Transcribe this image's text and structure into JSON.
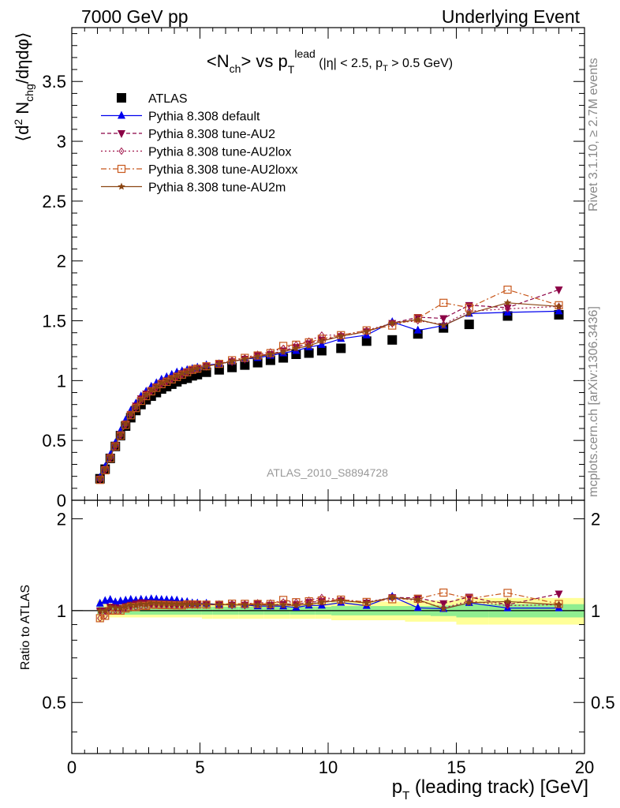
{
  "header": {
    "left": "7000 GeV pp",
    "right": "Underlying Event"
  },
  "side_labels": {
    "rivet": "Rivet 3.1.10, ≥ 2.7M events",
    "mcplots": "mcplots.cern.ch [arXiv:1306.3436]"
  },
  "colors": {
    "ATLAS": "#000000",
    "default": "#0000ee",
    "AU2": "#8b0045",
    "AU2lox": "#a0154b",
    "AU2loxx": "#c8581c",
    "AU2m": "#8b4513",
    "band_green": "#90ee90",
    "band_yellow": "#ffff99"
  },
  "chart_data": [
    {
      "type": "scatter",
      "title": "<N_ch> vs p_T^lead (|η| < 2.5, p_T > 0.5 GeV)",
      "title_parts": {
        "main": "<N",
        "main_sub": "ch",
        "mid": "> vs p",
        "sub": "T",
        "sup": "lead",
        "cuts_a": " (|η| < 2.5, p",
        "cuts_sub": "T",
        "cuts_b": " > 0.5 GeV)"
      },
      "ylabel": "⟨d² N_chg/dηdφ⟩",
      "ylabel_parts": {
        "a": "⟨d",
        "sup": "2",
        "b": " N",
        "sub": "chg",
        "c": "/dηdφ⟩"
      },
      "xlim": [
        0,
        20
      ],
      "ylim": [
        0,
        3.95
      ],
      "yticks": [
        "0",
        "0.5",
        "1",
        "1.5",
        "2",
        "2.5",
        "3",
        "3.5"
      ],
      "legend_position": "top-left",
      "watermark": "ATLAS_2010_S8894728",
      "x": [
        1.1,
        1.3,
        1.5,
        1.7,
        1.9,
        2.1,
        2.3,
        2.5,
        2.7,
        2.9,
        3.1,
        3.3,
        3.5,
        3.7,
        3.9,
        4.1,
        4.3,
        4.5,
        4.7,
        4.9,
        5.25,
        5.75,
        6.25,
        6.75,
        7.25,
        7.75,
        8.25,
        8.75,
        9.25,
        9.75,
        10.5,
        11.5,
        12.5,
        13.5,
        14.5,
        15.5,
        17.0,
        19.0
      ],
      "series": [
        {
          "name": "ATLAS",
          "marker": "square-filled",
          "values": [
            0.18,
            0.26,
            0.35,
            0.45,
            0.54,
            0.62,
            0.69,
            0.75,
            0.8,
            0.84,
            0.87,
            0.9,
            0.93,
            0.95,
            0.97,
            0.99,
            1.01,
            1.02,
            1.04,
            1.05,
            1.07,
            1.09,
            1.11,
            1.13,
            1.15,
            1.17,
            1.19,
            1.22,
            1.23,
            1.25,
            1.27,
            1.33,
            1.34,
            1.39,
            1.44,
            1.47,
            1.54,
            1.55
          ]
        },
        {
          "name": "Pythia 8.308 default",
          "marker": "triangle-up-filled",
          "line": "solid",
          "values": [
            0.19,
            0.28,
            0.38,
            0.48,
            0.58,
            0.67,
            0.75,
            0.81,
            0.87,
            0.91,
            0.95,
            0.98,
            1.01,
            1.03,
            1.05,
            1.07,
            1.08,
            1.09,
            1.1,
            1.11,
            1.13,
            1.14,
            1.16,
            1.18,
            1.19,
            1.21,
            1.23,
            1.25,
            1.28,
            1.3,
            1.35,
            1.38,
            1.49,
            1.42,
            1.46,
            1.56,
            1.57,
            1.58
          ]
        },
        {
          "name": "Pythia 8.308 tune-AU2",
          "marker": "triangle-down-filled",
          "line": "dashed",
          "values": [
            0.18,
            0.26,
            0.36,
            0.46,
            0.55,
            0.64,
            0.72,
            0.79,
            0.85,
            0.89,
            0.92,
            0.95,
            0.98,
            1.0,
            1.02,
            1.04,
            1.06,
            1.07,
            1.09,
            1.1,
            1.12,
            1.14,
            1.16,
            1.18,
            1.21,
            1.22,
            1.25,
            1.28,
            1.31,
            1.34,
            1.37,
            1.41,
            1.48,
            1.53,
            1.52,
            1.63,
            1.61,
            1.76
          ]
        },
        {
          "name": "Pythia 8.308 tune-AU2lox",
          "marker": "diamond-open",
          "line": "dotted",
          "values": [
            0.17,
            0.25,
            0.35,
            0.45,
            0.54,
            0.63,
            0.71,
            0.77,
            0.83,
            0.87,
            0.91,
            0.94,
            0.97,
            0.99,
            1.01,
            1.03,
            1.05,
            1.07,
            1.09,
            1.1,
            1.12,
            1.14,
            1.17,
            1.19,
            1.22,
            1.24,
            1.27,
            1.3,
            1.33,
            1.38,
            1.38,
            1.42,
            1.48,
            1.5,
            1.47,
            1.58,
            1.6,
            1.62
          ]
        },
        {
          "name": "Pythia 8.308 tune-AU2loxx",
          "marker": "square-open",
          "line": "dashdot",
          "values": [
            0.17,
            0.25,
            0.35,
            0.45,
            0.54,
            0.63,
            0.71,
            0.77,
            0.83,
            0.87,
            0.91,
            0.94,
            0.97,
            0.99,
            1.01,
            1.03,
            1.05,
            1.07,
            1.09,
            1.1,
            1.12,
            1.14,
            1.17,
            1.19,
            1.21,
            1.23,
            1.29,
            1.3,
            1.32,
            1.35,
            1.38,
            1.42,
            1.46,
            1.52,
            1.65,
            1.61,
            1.76,
            1.63
          ]
        },
        {
          "name": "Pythia 8.308 tune-AU2m",
          "marker": "star-filled",
          "line": "solid",
          "values": [
            0.18,
            0.26,
            0.36,
            0.46,
            0.55,
            0.64,
            0.72,
            0.78,
            0.84,
            0.88,
            0.92,
            0.95,
            0.98,
            1.0,
            1.02,
            1.04,
            1.06,
            1.07,
            1.09,
            1.1,
            1.12,
            1.14,
            1.16,
            1.18,
            1.2,
            1.22,
            1.24,
            1.27,
            1.29,
            1.33,
            1.37,
            1.41,
            1.48,
            1.51,
            1.46,
            1.56,
            1.65,
            1.62
          ]
        }
      ]
    },
    {
      "type": "scatter",
      "title": "",
      "xlabel": "p_T (leading track) [GeV]",
      "xlabel_parts": {
        "a": "p",
        "sub": "T",
        "b": " (leading track) [GeV]"
      },
      "ylabel": "Ratio to ATLAS",
      "xlim": [
        0,
        20
      ],
      "ylim": [
        0.34,
        2.3
      ],
      "xticks": [
        "0",
        "5",
        "10",
        "15",
        "20"
      ],
      "yticks": [
        "0.5",
        "1",
        "2"
      ],
      "bands": {
        "green_halfwidth": [
          0.03,
          0.028,
          0.028,
          0.028,
          0.03,
          0.03,
          0.03,
          0.03,
          0.03,
          0.03,
          0.03,
          0.03,
          0.03,
          0.03,
          0.03,
          0.03,
          0.03,
          0.03,
          0.03,
          0.03,
          0.03,
          0.03,
          0.03,
          0.03,
          0.03,
          0.03,
          0.03,
          0.03,
          0.03,
          0.03,
          0.035,
          0.035,
          0.035,
          0.035,
          0.04,
          0.05,
          0.05,
          0.05
        ],
        "yellow_halfwidth": [
          0.08,
          0.06,
          0.05,
          0.05,
          0.05,
          0.05,
          0.05,
          0.05,
          0.05,
          0.05,
          0.05,
          0.05,
          0.05,
          0.05,
          0.05,
          0.05,
          0.05,
          0.05,
          0.05,
          0.05,
          0.06,
          0.06,
          0.06,
          0.06,
          0.06,
          0.06,
          0.06,
          0.06,
          0.06,
          0.06,
          0.07,
          0.07,
          0.07,
          0.08,
          0.08,
          0.1,
          0.1,
          0.1
        ]
      }
    }
  ]
}
